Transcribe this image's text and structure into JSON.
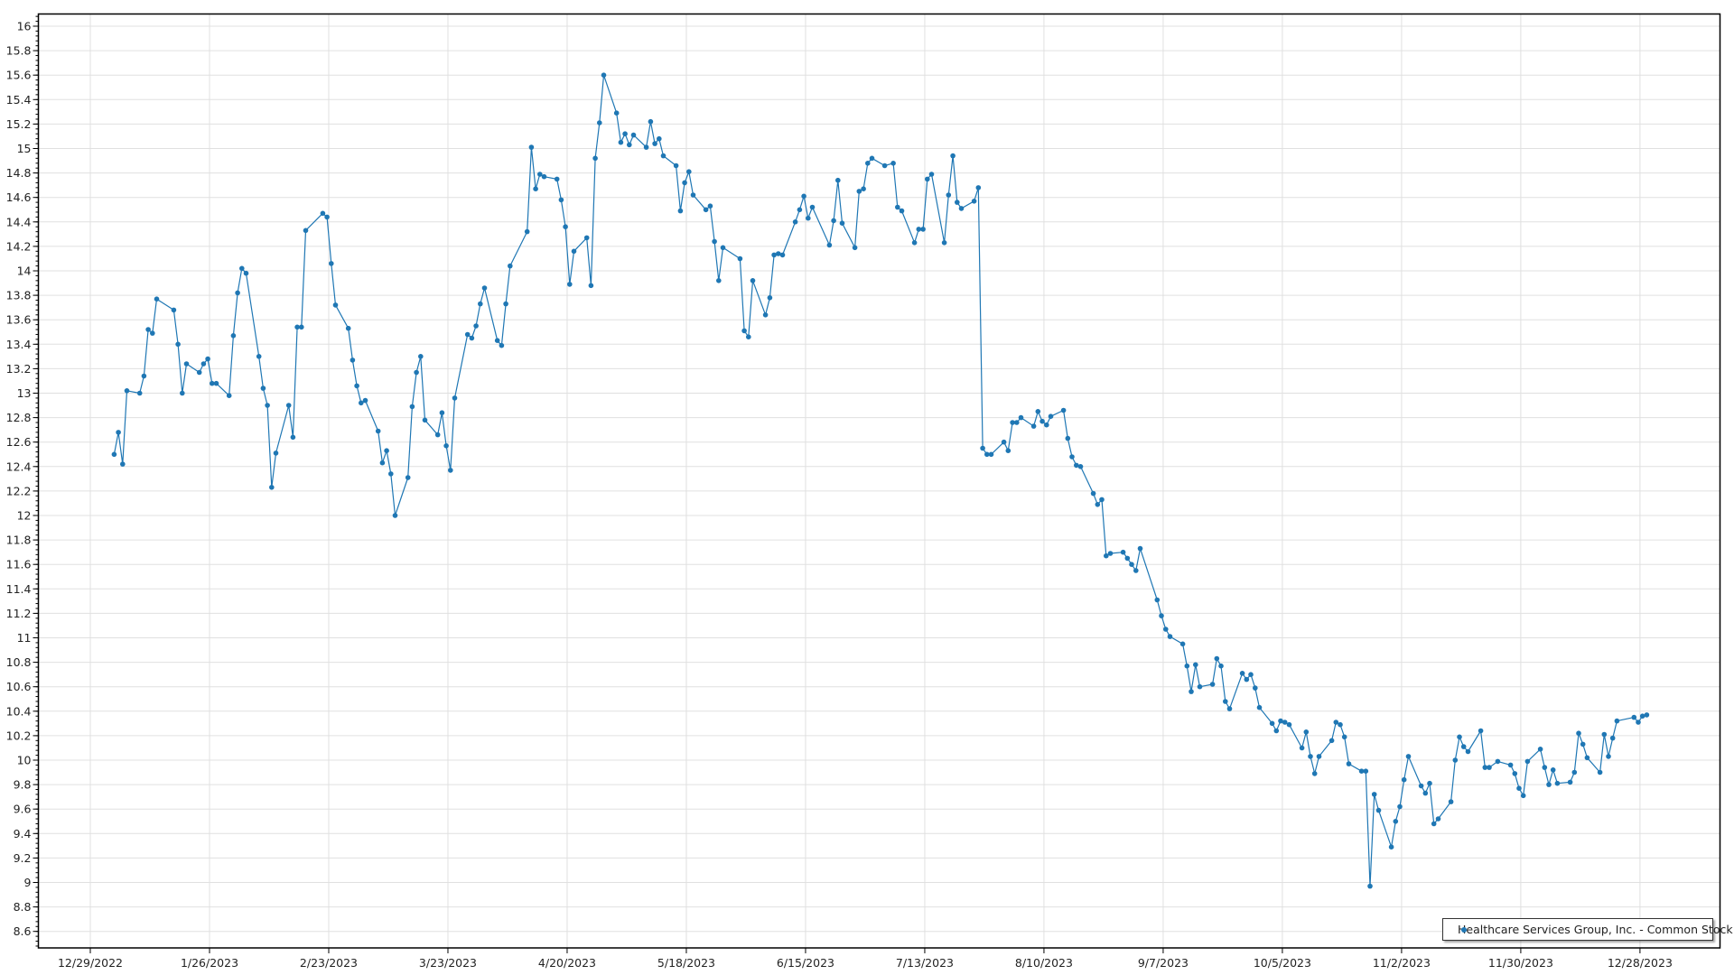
{
  "chart_data": {
    "type": "line",
    "title": "",
    "xlabel": "",
    "ylabel": "",
    "ylim": [
      8.47,
      16.1
    ],
    "xlim": [
      "12/16/2022",
      "1/16/2024"
    ],
    "grid": true,
    "legend_position": "bottom-right",
    "y_ticks": [
      "8.6",
      "8.8",
      "9",
      "9.2",
      "9.4",
      "9.6",
      "9.8",
      "10",
      "10.2",
      "10.4",
      "10.6",
      "10.8",
      "11",
      "11.2",
      "11.4",
      "11.6",
      "11.8",
      "12",
      "12.2",
      "12.4",
      "12.6",
      "12.8",
      "13",
      "13.2",
      "13.4",
      "13.6",
      "13.8",
      "14",
      "14.2",
      "14.4",
      "14.6",
      "14.8",
      "15",
      "15.2",
      "15.4",
      "15.6",
      "15.8",
      "16"
    ],
    "x_ticks": [
      "12/29/2022",
      "1/26/2023",
      "2/23/2023",
      "3/23/2023",
      "4/20/2023",
      "5/18/2023",
      "6/15/2023",
      "7/13/2023",
      "8/10/2023",
      "9/7/2023",
      "10/5/2023",
      "11/2/2023",
      "11/30/2023",
      "12/28/2023"
    ],
    "series": [
      {
        "name": "Healthcare Services Group, Inc. - Common Stock",
        "color": "#1f77b4",
        "marker": "circle",
        "points": [
          [
            "1/3/2023",
            12.5
          ],
          [
            "1/4/2023",
            12.68
          ],
          [
            "1/5/2023",
            12.42
          ],
          [
            "1/6/2023",
            13.02
          ],
          [
            "1/9/2023",
            13.0
          ],
          [
            "1/10/2023",
            13.14
          ],
          [
            "1/11/2023",
            13.52
          ],
          [
            "1/12/2023",
            13.49
          ],
          [
            "1/13/2023",
            13.77
          ],
          [
            "1/17/2023",
            13.68
          ],
          [
            "1/18/2023",
            13.4
          ],
          [
            "1/19/2023",
            13.0
          ],
          [
            "1/20/2023",
            13.24
          ],
          [
            "1/23/2023",
            13.17
          ],
          [
            "1/24/2023",
            13.24
          ],
          [
            "1/25/2023",
            13.28
          ],
          [
            "1/26/2023",
            13.08
          ],
          [
            "1/27/2023",
            13.08
          ],
          [
            "1/30/2023",
            12.98
          ],
          [
            "1/31/2023",
            13.47
          ],
          [
            "2/1/2023",
            13.82
          ],
          [
            "2/2/2023",
            14.02
          ],
          [
            "2/3/2023",
            13.98
          ],
          [
            "2/6/2023",
            13.3
          ],
          [
            "2/7/2023",
            13.04
          ],
          [
            "2/8/2023",
            12.9
          ],
          [
            "2/9/2023",
            12.23
          ],
          [
            "2/10/2023",
            12.51
          ],
          [
            "2/13/2023",
            12.9
          ],
          [
            "2/14/2023",
            12.64
          ],
          [
            "2/15/2023",
            13.54
          ],
          [
            "2/16/2023",
            13.54
          ],
          [
            "2/17/2023",
            14.33
          ],
          [
            "2/21/2023",
            14.47
          ],
          [
            "2/22/2023",
            14.44
          ],
          [
            "2/23/2023",
            14.06
          ],
          [
            "2/24/2023",
            13.72
          ],
          [
            "2/27/2023",
            13.53
          ],
          [
            "2/28/2023",
            13.27
          ],
          [
            "3/1/2023",
            13.06
          ],
          [
            "3/2/2023",
            12.92
          ],
          [
            "3/3/2023",
            12.94
          ],
          [
            "3/6/2023",
            12.69
          ],
          [
            "3/7/2023",
            12.43
          ],
          [
            "3/8/2023",
            12.53
          ],
          [
            "3/9/2023",
            12.34
          ],
          [
            "3/10/2023",
            12.0
          ],
          [
            "3/13/2023",
            12.31
          ],
          [
            "3/14/2023",
            12.89
          ],
          [
            "3/15/2023",
            13.17
          ],
          [
            "3/16/2023",
            13.3
          ],
          [
            "3/17/2023",
            12.78
          ],
          [
            "3/20/2023",
            12.66
          ],
          [
            "3/21/2023",
            12.84
          ],
          [
            "3/22/2023",
            12.57
          ],
          [
            "3/23/2023",
            12.37
          ],
          [
            "3/24/2023",
            12.96
          ],
          [
            "3/27/2023",
            13.48
          ],
          [
            "3/28/2023",
            13.45
          ],
          [
            "3/29/2023",
            13.55
          ],
          [
            "3/30/2023",
            13.73
          ],
          [
            "3/31/2023",
            13.86
          ],
          [
            "4/3/2023",
            13.43
          ],
          [
            "4/4/2023",
            13.39
          ],
          [
            "4/5/2023",
            13.73
          ],
          [
            "4/6/2023",
            14.04
          ],
          [
            "4/10/2023",
            14.32
          ],
          [
            "4/11/2023",
            15.01
          ],
          [
            "4/12/2023",
            14.67
          ],
          [
            "4/13/2023",
            14.79
          ],
          [
            "4/14/2023",
            14.77
          ],
          [
            "4/17/2023",
            14.75
          ],
          [
            "4/18/2023",
            14.58
          ],
          [
            "4/19/2023",
            14.36
          ],
          [
            "4/20/2023",
            13.89
          ],
          [
            "4/21/2023",
            14.16
          ],
          [
            "4/24/2023",
            14.27
          ],
          [
            "4/25/2023",
            13.88
          ],
          [
            "4/26/2023",
            14.92
          ],
          [
            "4/27/2023",
            15.21
          ],
          [
            "4/28/2023",
            15.6
          ],
          [
            "5/1/2023",
            15.29
          ],
          [
            "5/2/2023",
            15.05
          ],
          [
            "5/3/2023",
            15.12
          ],
          [
            "5/4/2023",
            15.03
          ],
          [
            "5/5/2023",
            15.11
          ],
          [
            "5/8/2023",
            15.01
          ],
          [
            "5/9/2023",
            15.22
          ],
          [
            "5/10/2023",
            15.04
          ],
          [
            "5/11/2023",
            15.08
          ],
          [
            "5/12/2023",
            14.94
          ],
          [
            "5/15/2023",
            14.86
          ],
          [
            "5/16/2023",
            14.49
          ],
          [
            "5/17/2023",
            14.72
          ],
          [
            "5/18/2023",
            14.81
          ],
          [
            "5/19/2023",
            14.62
          ],
          [
            "5/22/2023",
            14.5
          ],
          [
            "5/23/2023",
            14.53
          ],
          [
            "5/24/2023",
            14.24
          ],
          [
            "5/25/2023",
            13.92
          ],
          [
            "5/26/2023",
            14.19
          ],
          [
            "5/30/2023",
            14.1
          ],
          [
            "5/31/2023",
            13.51
          ],
          [
            "6/1/2023",
            13.46
          ],
          [
            "6/2/2023",
            13.92
          ],
          [
            "6/5/2023",
            13.64
          ],
          [
            "6/6/2023",
            13.78
          ],
          [
            "6/7/2023",
            14.13
          ],
          [
            "6/8/2023",
            14.14
          ],
          [
            "6/9/2023",
            14.13
          ],
          [
            "6/12/2023",
            14.4
          ],
          [
            "6/13/2023",
            14.5
          ],
          [
            "6/14/2023",
            14.61
          ],
          [
            "6/15/2023",
            14.43
          ],
          [
            "6/16/2023",
            14.52
          ],
          [
            "6/20/2023",
            14.21
          ],
          [
            "6/21/2023",
            14.41
          ],
          [
            "6/22/2023",
            14.74
          ],
          [
            "6/23/2023",
            14.39
          ],
          [
            "6/26/2023",
            14.19
          ],
          [
            "6/27/2023",
            14.65
          ],
          [
            "6/28/2023",
            14.67
          ],
          [
            "6/29/2023",
            14.88
          ],
          [
            "6/30/2023",
            14.92
          ],
          [
            "7/3/2023",
            14.86
          ],
          [
            "7/5/2023",
            14.88
          ],
          [
            "7/6/2023",
            14.52
          ],
          [
            "7/7/2023",
            14.49
          ],
          [
            "7/10/2023",
            14.23
          ],
          [
            "7/11/2023",
            14.34
          ],
          [
            "7/12/2023",
            14.34
          ],
          [
            "7/13/2023",
            14.75
          ],
          [
            "7/14/2023",
            14.79
          ],
          [
            "7/17/2023",
            14.23
          ],
          [
            "7/18/2023",
            14.62
          ],
          [
            "7/19/2023",
            14.94
          ],
          [
            "7/20/2023",
            14.56
          ],
          [
            "7/21/2023",
            14.51
          ],
          [
            "7/24/2023",
            14.57
          ],
          [
            "7/25/2023",
            14.68
          ],
          [
            "7/26/2023",
            12.55
          ],
          [
            "7/27/2023",
            12.5
          ],
          [
            "7/28/2023",
            12.5
          ],
          [
            "7/31/2023",
            12.6
          ],
          [
            "8/1/2023",
            12.53
          ],
          [
            "8/2/2023",
            12.76
          ],
          [
            "8/3/2023",
            12.76
          ],
          [
            "8/4/2023",
            12.8
          ],
          [
            "8/7/2023",
            12.73
          ],
          [
            "8/8/2023",
            12.85
          ],
          [
            "8/9/2023",
            12.77
          ],
          [
            "8/10/2023",
            12.74
          ],
          [
            "8/11/2023",
            12.81
          ],
          [
            "8/14/2023",
            12.86
          ],
          [
            "8/15/2023",
            12.63
          ],
          [
            "8/16/2023",
            12.48
          ],
          [
            "8/17/2023",
            12.41
          ],
          [
            "8/18/2023",
            12.4
          ],
          [
            "8/21/2023",
            12.18
          ],
          [
            "8/22/2023",
            12.09
          ],
          [
            "8/23/2023",
            12.13
          ],
          [
            "8/24/2023",
            11.67
          ],
          [
            "8/25/2023",
            11.69
          ],
          [
            "8/28/2023",
            11.7
          ],
          [
            "8/29/2023",
            11.65
          ],
          [
            "8/30/2023",
            11.6
          ],
          [
            "8/31/2023",
            11.55
          ],
          [
            "9/1/2023",
            11.73
          ],
          [
            "9/5/2023",
            11.31
          ],
          [
            "9/6/2023",
            11.18
          ],
          [
            "9/7/2023",
            11.07
          ],
          [
            "9/8/2023",
            11.01
          ],
          [
            "9/11/2023",
            10.95
          ],
          [
            "9/12/2023",
            10.77
          ],
          [
            "9/13/2023",
            10.56
          ],
          [
            "9/14/2023",
            10.78
          ],
          [
            "9/15/2023",
            10.6
          ],
          [
            "9/18/2023",
            10.62
          ],
          [
            "9/19/2023",
            10.83
          ],
          [
            "9/20/2023",
            10.77
          ],
          [
            "9/21/2023",
            10.48
          ],
          [
            "9/22/2023",
            10.42
          ],
          [
            "9/25/2023",
            10.71
          ],
          [
            "9/26/2023",
            10.66
          ],
          [
            "9/27/2023",
            10.7
          ],
          [
            "9/28/2023",
            10.59
          ],
          [
            "9/29/2023",
            10.43
          ],
          [
            "10/2/2023",
            10.3
          ],
          [
            "10/3/2023",
            10.24
          ],
          [
            "10/4/2023",
            10.32
          ],
          [
            "10/5/2023",
            10.31
          ],
          [
            "10/6/2023",
            10.29
          ],
          [
            "10/9/2023",
            10.1
          ],
          [
            "10/10/2023",
            10.23
          ],
          [
            "10/11/2023",
            10.03
          ],
          [
            "10/12/2023",
            9.89
          ],
          [
            "10/13/2023",
            10.03
          ],
          [
            "10/16/2023",
            10.16
          ],
          [
            "10/17/2023",
            10.31
          ],
          [
            "10/18/2023",
            10.29
          ],
          [
            "10/19/2023",
            10.19
          ],
          [
            "10/20/2023",
            9.97
          ],
          [
            "10/23/2023",
            9.91
          ],
          [
            "10/24/2023",
            9.91
          ],
          [
            "10/25/2023",
            8.97
          ],
          [
            "10/26/2023",
            9.72
          ],
          [
            "10/27/2023",
            9.59
          ],
          [
            "10/30/2023",
            9.29
          ],
          [
            "10/31/2023",
            9.5
          ],
          [
            "11/1/2023",
            9.62
          ],
          [
            "11/2/2023",
            9.84
          ],
          [
            "11/3/2023",
            10.03
          ],
          [
            "11/6/2023",
            9.79
          ],
          [
            "11/7/2023",
            9.73
          ],
          [
            "11/8/2023",
            9.81
          ],
          [
            "11/9/2023",
            9.48
          ],
          [
            "11/10/2023",
            9.52
          ],
          [
            "11/13/2023",
            9.66
          ],
          [
            "11/14/2023",
            10.0
          ],
          [
            "11/15/2023",
            10.19
          ],
          [
            "11/16/2023",
            10.11
          ],
          [
            "11/17/2023",
            10.07
          ],
          [
            "11/20/2023",
            10.24
          ],
          [
            "11/21/2023",
            9.94
          ],
          [
            "11/22/2023",
            9.94
          ],
          [
            "11/24/2023",
            9.99
          ],
          [
            "11/27/2023",
            9.96
          ],
          [
            "11/28/2023",
            9.89
          ],
          [
            "11/29/2023",
            9.77
          ],
          [
            "11/30/2023",
            9.71
          ],
          [
            "12/1/2023",
            9.99
          ],
          [
            "12/4/2023",
            10.09
          ],
          [
            "12/5/2023",
            9.94
          ],
          [
            "12/6/2023",
            9.8
          ],
          [
            "12/7/2023",
            9.92
          ],
          [
            "12/8/2023",
            9.81
          ],
          [
            "12/11/2023",
            9.82
          ],
          [
            "12/12/2023",
            9.9
          ],
          [
            "12/13/2023",
            10.22
          ],
          [
            "12/14/2023",
            10.13
          ],
          [
            "12/15/2023",
            10.02
          ],
          [
            "12/18/2023",
            9.9
          ],
          [
            "12/19/2023",
            10.21
          ],
          [
            "12/20/2023",
            10.03
          ],
          [
            "12/21/2023",
            10.18
          ],
          [
            "12/22/2023",
            10.32
          ],
          [
            "12/26/2023",
            10.35
          ],
          [
            "12/27/2023",
            10.31
          ],
          [
            "12/28/2023",
            10.36
          ],
          [
            "12/29/2023",
            10.37
          ]
        ]
      }
    ]
  },
  "legend": {
    "label": "Healthcare Services Group, Inc. - Common Stock"
  }
}
